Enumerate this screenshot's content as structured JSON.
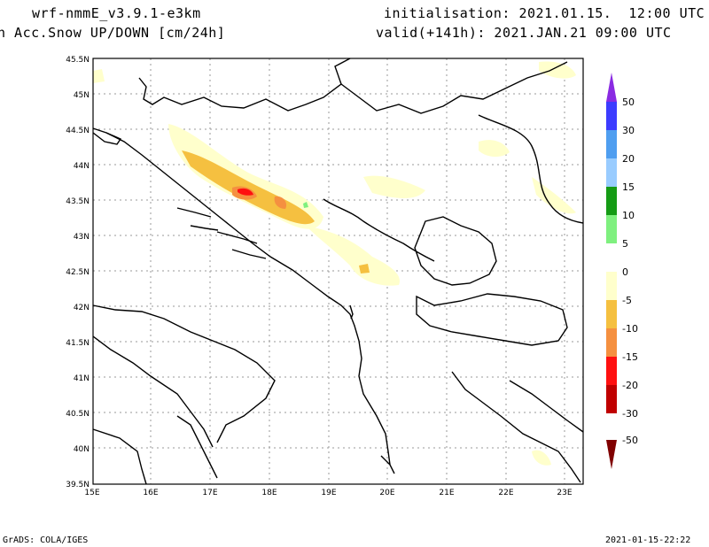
{
  "header": {
    "model": "wrf-nmmE_v3.9.1-e3km",
    "param": "h Acc.Snow UP/DOWN [cm/24h]",
    "init": "initialisation: 2021.01.15.  12:00 UTC",
    "valid": "valid(+141h): 2021.JAN.21 09:00 UTC"
  },
  "footer": {
    "left": "GrADS: COLA/IGES",
    "right": "2021-01-15-22:22"
  },
  "map": {
    "lon_ticks": [
      "15E",
      "16E",
      "17E",
      "18E",
      "19E",
      "20E",
      "21E",
      "22E",
      "23E"
    ],
    "lat_ticks": [
      "45.5N",
      "45N",
      "44.5N",
      "44N",
      "43.5N",
      "43N",
      "42.5N",
      "42N",
      "41.5N",
      "41N",
      "40.5N",
      "40N",
      "39.5N"
    ]
  },
  "colorbar": {
    "labels": [
      "50",
      "30",
      "20",
      "15",
      "10",
      "5",
      "0",
      "-5",
      "-10",
      "-15",
      "-20",
      "-30",
      "-50"
    ],
    "colors": [
      "#8a2be2",
      "#3c3cff",
      "#4f9ef0",
      "#99ccff",
      "#159b15",
      "#7ff07f",
      "#ffffff",
      "#ffffcc",
      "#f5c040",
      "#f59040",
      "#ff1010",
      "#c00000",
      "#800000"
    ]
  }
}
